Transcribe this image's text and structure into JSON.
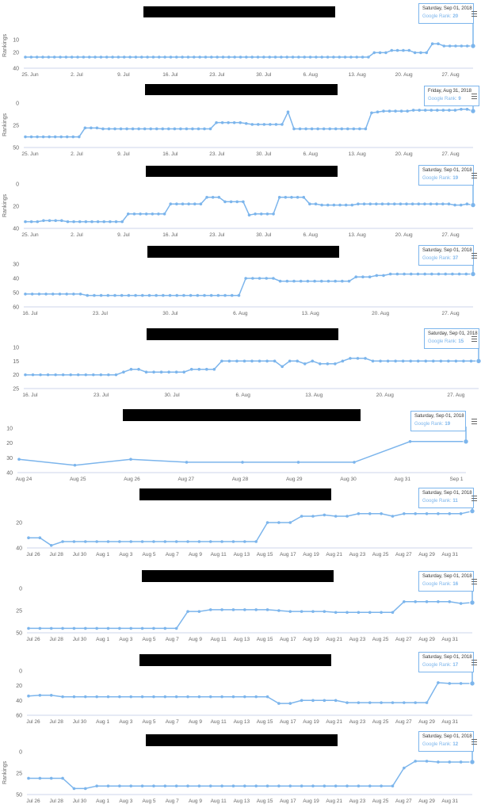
{
  "colors": {
    "series": "#7cb5ec",
    "axis": "#666666",
    "redact": "#000000"
  },
  "icons": {
    "menu": "menu-icon"
  },
  "chart_data": [
    {
      "type": "line",
      "tooltip": {
        "date": "Saturday, Sep 01, 2018",
        "rank_label": "Google Rank:",
        "rank_value": "20"
      },
      "ylabel": "Rankings",
      "ylim": [
        40,
        0
      ],
      "yticks": [
        "10",
        "20",
        "40"
      ],
      "xticks": [
        "25. Jun",
        "2. Jul",
        "9. Jul",
        "16. Jul",
        "23. Jul",
        "30. Jul",
        "6. Aug",
        "13. Aug",
        "20. Aug",
        "27. Aug"
      ],
      "values": [
        30,
        30,
        30,
        30,
        30,
        30,
        30,
        30,
        30,
        30,
        30,
        30,
        30,
        30,
        30,
        30,
        30,
        30,
        30,
        30,
        30,
        30,
        30,
        30,
        30,
        30,
        30,
        30,
        30,
        30,
        30,
        30,
        30,
        30,
        30,
        30,
        30,
        30,
        30,
        30,
        30,
        30,
        30,
        30,
        30,
        30,
        30,
        30,
        30,
        30,
        30,
        30,
        30,
        30,
        30,
        30,
        30,
        30,
        30,
        30,
        26,
        26,
        26,
        24,
        24,
        24,
        24,
        26,
        26,
        26,
        18,
        18,
        20,
        20,
        20,
        20,
        20,
        20
      ]
    },
    {
      "type": "line",
      "tooltip": {
        "date": "Friday, Aug 31, 2018",
        "rank_label": "Google Rank:",
        "rank_value": "9"
      },
      "ylabel": "Rankings",
      "ylim": [
        50,
        0
      ],
      "yticks": [
        "0",
        "25",
        "50"
      ],
      "xticks": [
        "25. Jun",
        "2. Jul",
        "9. Jul",
        "16. Jul",
        "23. Jul",
        "30. Jul",
        "6. Aug",
        "13. Aug",
        "20. Aug",
        "27. Aug"
      ],
      "values": [
        38,
        38,
        38,
        38,
        38,
        38,
        38,
        38,
        38,
        38,
        28,
        28,
        28,
        29,
        29,
        29,
        29,
        29,
        29,
        29,
        29,
        29,
        29,
        29,
        29,
        29,
        29,
        29,
        29,
        29,
        29,
        29,
        22,
        22,
        22,
        22,
        22,
        23,
        24,
        24,
        24,
        24,
        24,
        24,
        10,
        29,
        29,
        29,
        29,
        29,
        29,
        29,
        29,
        29,
        29,
        29,
        29,
        29,
        11,
        10,
        9,
        9,
        9,
        9,
        9,
        8,
        8,
        8,
        8,
        8,
        8,
        8,
        8,
        7,
        7,
        9
      ]
    },
    {
      "type": "line",
      "tooltip": {
        "date": "Saturday, Sep 01, 2018",
        "rank_label": "Google Rank:",
        "rank_value": "19"
      },
      "ylabel": "Rankings",
      "ylim": [
        40,
        0
      ],
      "yticks": [
        "0",
        "20",
        "40"
      ],
      "xticks": [
        "25. Jun",
        "2. Jul",
        "9. Jul",
        "16. Jul",
        "23. Jul",
        "30. Jul",
        "6. Aug",
        "13. Aug",
        "20. Aug",
        "27. Aug"
      ],
      "values": [
        34,
        34,
        34,
        33,
        33,
        33,
        33,
        34,
        34,
        34,
        34,
        34,
        34,
        34,
        34,
        34,
        34,
        27,
        27,
        27,
        27,
        27,
        27,
        27,
        18,
        18,
        18,
        18,
        18,
        18,
        12,
        12,
        12,
        16,
        16,
        16,
        16,
        28,
        27,
        27,
        27,
        27,
        12,
        12,
        12,
        12,
        12,
        18,
        18,
        19,
        19,
        19,
        19,
        19,
        19,
        18,
        18,
        18,
        18,
        18,
        18,
        18,
        18,
        18,
        18,
        18,
        18,
        18,
        18,
        18,
        18,
        19,
        19,
        18,
        19
      ]
    },
    {
      "type": "line",
      "tooltip": {
        "date": "Saturday, Sep 01, 2018",
        "rank_label": "Google Rank:",
        "rank_value": "37"
      },
      "ylabel": "",
      "ylim": [
        60,
        30
      ],
      "yticks": [
        "30",
        "40",
        "50",
        "60"
      ],
      "xticks": [
        "16. Jul",
        "23. Jul",
        "30. Jul",
        "6. Aug",
        "13. Aug",
        "20. Aug",
        "27. Aug"
      ],
      "values": [
        51,
        51,
        51,
        51,
        51,
        51,
        51,
        51,
        51,
        52,
        52,
        52,
        52,
        52,
        52,
        52,
        52,
        52,
        52,
        52,
        52,
        52,
        52,
        52,
        52,
        52,
        52,
        52,
        52,
        52,
        52,
        52,
        40,
        40,
        40,
        40,
        40,
        42,
        42,
        42,
        42,
        42,
        42,
        42,
        42,
        42,
        42,
        42,
        39,
        39,
        39,
        38,
        38,
        37,
        37,
        37,
        37,
        37,
        37,
        37,
        37,
        37,
        37,
        37,
        37,
        37
      ]
    },
    {
      "type": "line",
      "tooltip": {
        "date": "Saturday, Sep 01, 2018",
        "rank_label": "Google Rank:",
        "rank_value": "15"
      },
      "ylabel": "",
      "ylim": [
        25,
        10
      ],
      "yticks": [
        "10",
        "15",
        "20",
        "25"
      ],
      "xticks": [
        "16. Jul",
        "23. Jul",
        "30. Jul",
        "6. Aug",
        "13. Aug",
        "20. Aug",
        "27. Aug"
      ],
      "values": [
        20,
        20,
        20,
        20,
        20,
        20,
        20,
        20,
        20,
        20,
        20,
        20,
        20,
        19,
        18,
        18,
        19,
        19,
        19,
        19,
        19,
        19,
        18,
        18,
        18,
        18,
        15,
        15,
        15,
        15,
        15,
        15,
        15,
        15,
        17,
        15,
        15,
        16,
        15,
        16,
        16,
        16,
        15,
        14,
        14,
        14,
        15,
        15,
        15,
        15,
        15,
        15,
        15,
        15,
        15,
        15,
        15,
        15,
        15,
        15,
        15
      ]
    },
    {
      "type": "line",
      "tooltip": {
        "date": "Saturday, Sep 01, 2018",
        "rank_label": "Google Rank:",
        "rank_value": "19"
      },
      "ylabel": "",
      "ylim": [
        40,
        10
      ],
      "yticks": [
        "10",
        "20",
        "30",
        "40"
      ],
      "xticks": [
        "Aug 24",
        "Aug 25",
        "Aug 26",
        "Aug 27",
        "Aug 28",
        "Aug 29",
        "Aug 30",
        "Aug 31",
        "Sep 1"
      ],
      "values": [
        31,
        35,
        31,
        33,
        33,
        33,
        33,
        19,
        19
      ]
    },
    {
      "type": "line",
      "tooltip": {
        "date": "Saturday, Sep 01, 2018",
        "rank_label": "Google Rank:",
        "rank_value": "11"
      },
      "ylabel": "",
      "ylim": [
        40,
        0
      ],
      "yticks": [
        "20",
        "40"
      ],
      "xticks": [
        "Jul 26",
        "Jul 28",
        "Jul 30",
        "Aug 1",
        "Aug 3",
        "Aug 5",
        "Aug 7",
        "Aug 9",
        "Aug 11",
        "Aug 13",
        "Aug 15",
        "Aug 17",
        "Aug 19",
        "Aug 21",
        "Aug 23",
        "Aug 25",
        "Aug 27",
        "Aug 29",
        "Aug 31"
      ],
      "values": [
        32,
        32,
        38,
        35,
        35,
        35,
        35,
        35,
        35,
        35,
        35,
        35,
        35,
        35,
        35,
        35,
        35,
        35,
        35,
        35,
        35,
        20,
        20,
        20,
        15,
        15,
        14,
        15,
        15,
        13,
        13,
        13,
        15,
        13,
        13,
        13,
        13,
        13,
        13,
        11
      ]
    },
    {
      "type": "line",
      "tooltip": {
        "date": "Saturday, Sep 01, 2018",
        "rank_label": "Google Rank:",
        "rank_value": "16"
      },
      "ylabel": "",
      "ylim": [
        50,
        0
      ],
      "yticks": [
        "0",
        "25",
        "50"
      ],
      "xticks": [
        "Jul 26",
        "Jul 28",
        "Jul 30",
        "Aug 1",
        "Aug 3",
        "Aug 5",
        "Aug 7",
        "Aug 9",
        "Aug 11",
        "Aug 13",
        "Aug 15",
        "Aug 17",
        "Aug 19",
        "Aug 21",
        "Aug 23",
        "Aug 25",
        "Aug 27",
        "Aug 29",
        "Aug 31"
      ],
      "values": [
        45,
        45,
        45,
        45,
        45,
        45,
        45,
        45,
        45,
        45,
        45,
        45,
        45,
        45,
        26,
        26,
        24,
        24,
        24,
        24,
        24,
        24,
        25,
        26,
        26,
        26,
        26,
        27,
        27,
        27,
        27,
        27,
        27,
        15,
        15,
        15,
        15,
        15,
        17,
        16
      ]
    },
    {
      "type": "line",
      "tooltip": {
        "date": "Saturday, Sep 01, 2018",
        "rank_label": "Google Rank:",
        "rank_value": "17"
      },
      "ylabel": "",
      "ylim": [
        60,
        0
      ],
      "yticks": [
        "0",
        "20",
        "40",
        "60"
      ],
      "xticks": [
        "Jul 26",
        "Jul 28",
        "Jul 30",
        "Aug 1",
        "Aug 3",
        "Aug 5",
        "Aug 7",
        "Aug 9",
        "Aug 11",
        "Aug 13",
        "Aug 15",
        "Aug 17",
        "Aug 19",
        "Aug 21",
        "Aug 23",
        "Aug 25",
        "Aug 27",
        "Aug 29",
        "Aug 31"
      ],
      "values": [
        34,
        33,
        33,
        35,
        35,
        35,
        35,
        35,
        35,
        35,
        35,
        35,
        35,
        35,
        35,
        35,
        35,
        35,
        35,
        35,
        35,
        35,
        44,
        44,
        40,
        40,
        40,
        40,
        43,
        43,
        43,
        43,
        43,
        43,
        43,
        43,
        16,
        17,
        17,
        17
      ]
    },
    {
      "type": "line",
      "tooltip": {
        "date": "Saturday, Sep 01, 2018",
        "rank_label": "Google Rank:",
        "rank_value": "12"
      },
      "ylabel": "Rankings",
      "ylim": [
        50,
        0
      ],
      "yticks": [
        "0",
        "25",
        "50"
      ],
      "xticks": [
        "Jul 26",
        "Jul 28",
        "Jul 30",
        "Aug 1",
        "Aug 3",
        "Aug 5",
        "Aug 7",
        "Aug 9",
        "Aug 11",
        "Aug 13",
        "Aug 15",
        "Aug 17",
        "Aug 19",
        "Aug 21",
        "Aug 23",
        "Aug 25",
        "Aug 27",
        "Aug 29",
        "Aug 31"
      ],
      "values": [
        31,
        31,
        31,
        31,
        43,
        43,
        40,
        40,
        40,
        40,
        40,
        40,
        40,
        40,
        40,
        40,
        40,
        40,
        40,
        40,
        40,
        40,
        40,
        40,
        40,
        40,
        40,
        40,
        40,
        40,
        40,
        40,
        40,
        19,
        11,
        11,
        12,
        12,
        12,
        12
      ]
    }
  ]
}
